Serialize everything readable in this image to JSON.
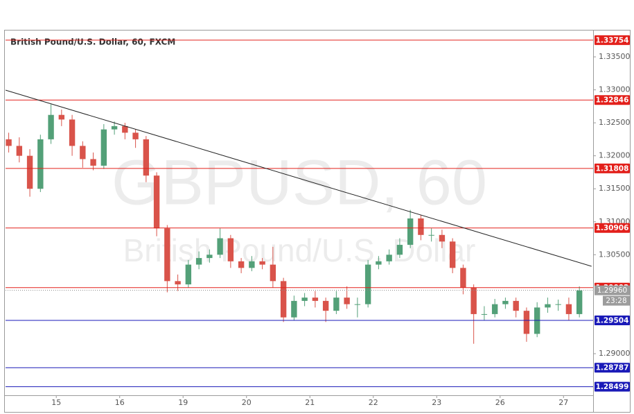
{
  "chart_data": {
    "type": "candlestick",
    "title": "British Pound/U.S. Dollar, 60, FXCM",
    "watermark": "GBPUSD, 60",
    "watermark_subtitle": "British Pound/U.S. Dollar",
    "x": [
      -18,
      -14,
      -10,
      -6,
      -2,
      2,
      6,
      10,
      14,
      18,
      22,
      26,
      30,
      34,
      38,
      42,
      46,
      50,
      54,
      58,
      62,
      66,
      70,
      74,
      78,
      82,
      86,
      90,
      94,
      98,
      102,
      106,
      110,
      114,
      118,
      122,
      126,
      130,
      134,
      138,
      142,
      146,
      150,
      154,
      158,
      162,
      166,
      170,
      174,
      178,
      182,
      186,
      190,
      194,
      198
    ],
    "open": [
      1.3225,
      1.3215,
      1.32,
      1.315,
      1.3225,
      1.3262,
      1.3255,
      1.3215,
      1.3195,
      1.3185,
      1.324,
      1.3245,
      1.3235,
      1.3225,
      1.317,
      1.309,
      1.301,
      1.3005,
      1.3035,
      1.3045,
      1.305,
      1.3075,
      1.304,
      1.303,
      1.304,
      1.3035,
      1.301,
      1.2955,
      1.298,
      1.2985,
      1.298,
      1.2965,
      1.2985,
      1.2975,
      1.2975,
      1.3035,
      1.304,
      1.305,
      1.3065,
      1.3105,
      1.308,
      1.308,
      1.307,
      1.303,
      1.3,
      1.296,
      1.296,
      1.2975,
      1.298,
      1.2965,
      1.293,
      1.297,
      1.2975,
      1.2975,
      1.296
    ],
    "high": [
      1.3235,
      1.3228,
      1.321,
      1.3232,
      1.3278,
      1.327,
      1.3262,
      1.3222,
      1.3205,
      1.3248,
      1.3252,
      1.325,
      1.324,
      1.323,
      1.3175,
      1.3095,
      1.302,
      1.3042,
      1.3055,
      1.3058,
      1.309,
      1.308,
      1.3045,
      1.3048,
      1.3045,
      1.3062,
      1.3015,
      1.2988,
      1.2992,
      1.2995,
      1.2985,
      1.2995,
      1.3002,
      1.2985,
      1.3042,
      1.3048,
      1.3058,
      1.3075,
      1.3118,
      1.311,
      1.309,
      1.3088,
      1.3075,
      1.3035,
      1.3005,
      1.2972,
      1.2983,
      1.2985,
      1.2985,
      1.297,
      1.2978,
      1.2985,
      1.2982,
      1.2985,
      1.3002
    ],
    "low": [
      1.3205,
      1.319,
      1.3138,
      1.3145,
      1.3218,
      1.3245,
      1.32,
      1.3182,
      1.3178,
      1.318,
      1.3232,
      1.3225,
      1.3212,
      1.316,
      1.3078,
      1.2993,
      1.2995,
      1.3,
      1.3028,
      1.3038,
      1.3045,
      1.303,
      1.3022,
      1.3025,
      1.3028,
      1.3,
      1.2948,
      1.295,
      1.2972,
      1.297,
      1.2948,
      1.296,
      1.2968,
      1.2955,
      1.297,
      1.3028,
      1.3035,
      1.3045,
      1.306,
      1.3072,
      1.307,
      1.306,
      1.3022,
      1.299,
      1.2915,
      1.295,
      1.2955,
      1.2968,
      1.2955,
      1.2918,
      1.2925,
      1.2962,
      1.2965,
      1.295,
      1.2955
    ],
    "close": [
      1.3215,
      1.32,
      1.315,
      1.3225,
      1.3262,
      1.3255,
      1.3215,
      1.3195,
      1.3185,
      1.324,
      1.3245,
      1.3235,
      1.3225,
      1.317,
      1.309,
      1.301,
      1.3005,
      1.3035,
      1.3045,
      1.305,
      1.3075,
      1.304,
      1.303,
      1.304,
      1.3035,
      1.301,
      1.2955,
      1.298,
      1.2985,
      1.298,
      1.2965,
      1.2985,
      1.2975,
      1.2975,
      1.3035,
      1.304,
      1.305,
      1.3065,
      1.3105,
      1.308,
      1.308,
      1.307,
      1.303,
      1.3,
      1.296,
      1.296,
      1.2975,
      1.298,
      1.2965,
      1.293,
      1.297,
      1.2975,
      1.2975,
      1.296,
      1.2996
    ],
    "up_color": "#53a078",
    "down_color": "#d9534a",
    "xlim": [
      -19.2,
      203.2
    ],
    "ylim": [
      1.28369,
      1.33889
    ],
    "xticks": [
      {
        "value": 0,
        "label": "15"
      },
      {
        "value": 24,
        "label": "16"
      },
      {
        "value": 48,
        "label": "19"
      },
      {
        "value": 72,
        "label": "20"
      },
      {
        "value": 96,
        "label": "21"
      },
      {
        "value": 120,
        "label": "22"
      },
      {
        "value": 144,
        "label": "23"
      },
      {
        "value": 168,
        "label": "26"
      },
      {
        "value": 192,
        "label": "27"
      }
    ],
    "yticks": [
      {
        "value": 1.335,
        "label": "1.33500"
      },
      {
        "value": 1.33,
        "label": "1.33000"
      },
      {
        "value": 1.325,
        "label": "1.32500"
      },
      {
        "value": 1.32,
        "label": "1.32000"
      },
      {
        "value": 1.315,
        "label": "1.31500"
      },
      {
        "value": 1.31,
        "label": "1.31000"
      },
      {
        "value": 1.305,
        "label": "1.30500"
      },
      {
        "value": 1.29,
        "label": "1.29000"
      }
    ],
    "levels": [
      {
        "value": 1.33754,
        "color": "#e3201b"
      },
      {
        "value": 1.32846,
        "color": "#e3201b"
      },
      {
        "value": 1.31808,
        "color": "#e3201b"
      },
      {
        "value": 1.30906,
        "color": "#e3201b"
      },
      {
        "value": 1.30002,
        "color": "#e3201b"
      },
      {
        "value": 1.29504,
        "color": "#1a1ab8"
      },
      {
        "value": 1.28787,
        "color": "#1a1ab8"
      },
      {
        "value": 1.28499,
        "color": "#1a1ab8"
      }
    ],
    "trendline": {
      "x": [
        -19.2,
        202.6
      ],
      "y": [
        1.32995,
        1.30325
      ],
      "color": "#222222"
    },
    "last_price": {
      "value": 1.2996,
      "label": "1.29960"
    },
    "countdown": "23:28"
  }
}
